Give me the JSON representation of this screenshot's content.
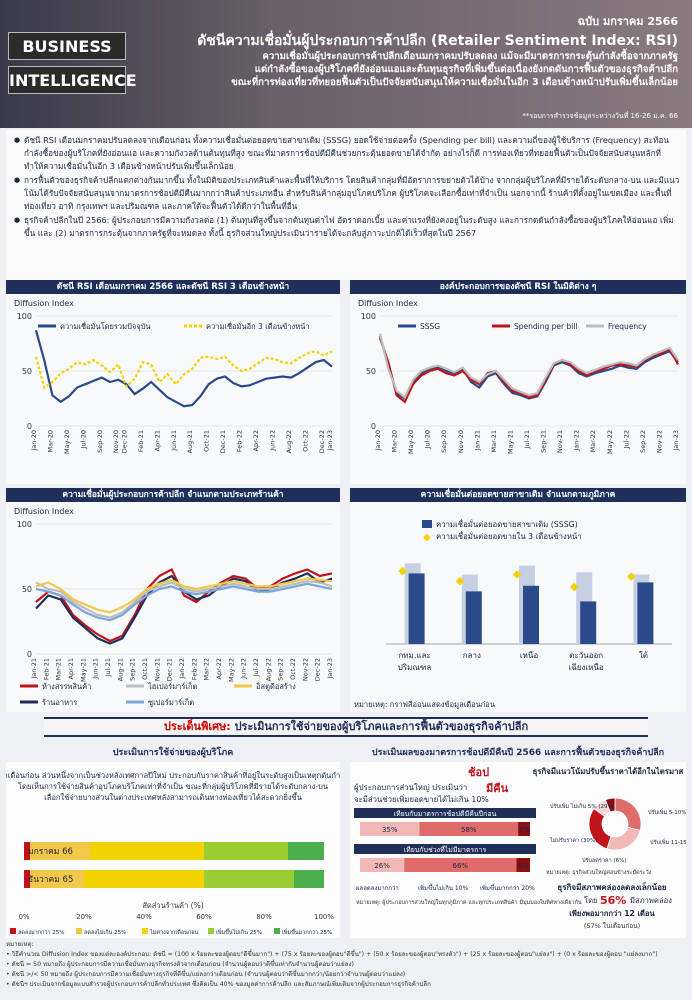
{
  "header": {
    "brand_line1": "BUSINESS",
    "brand_line2": "INTELLIGENCE",
    "issue": "ฉบับ มกราคม 2566",
    "title": "ดัชนีความเชื่อมั่นผู้ประกอบการค้าปลีก (Retailer Sentiment Index: RSI)",
    "sub1": "ความเชื่อมั่นผู้ประกอบการค้าปลีกเดือนมกราคมปรับลดลง แม้จะมีมาตรการกระตุ้นกำลังซื้อจากภาครัฐ",
    "sub2": "แต่กำลังซื้อของผู้บริโภคที่ยังอ่อนแอและต้นทุนธุรกิจที่เพิ่มขึ้นต่อเนื่องยังกดดันการฟื้นตัวของธุรกิจค้าปลีก",
    "sub3": "ขณะที่การท่องเที่ยวที่ทยอยฟื้นตัวเป็นปัจจัยสนับสนุนให้ความเชื่อมั่นในอีก 3 เดือนข้างหน้าปรับเพิ่มขึ้นเล็กน้อย",
    "note": "**รอบการสำรวจข้อมูลระหว่างวันที่ 16-26 ม.ค. 66"
  },
  "bullets": [
    "ดัชนี RSI เดือนมกราคมปรับลดลงจากเดือนก่อน ทั้งความเชื่อมั่นต่อยอดขายสาขาเดิม (SSSG) ยอดใช้จ่ายต่อครั้ง (Spending per bill) และความถี่ของผู้ใช้บริการ (Frequency) สะท้อนกำลังซื้อของผู้บริโภคที่ยังอ่อนแอ และความกังวลด้านต้นทุนที่สูง ขณะที่มาตรการช้อปดีมีคืนช่วยกระตุ้นยอดขายได้จำกัด อย่างไรก็ดี การท่องเที่ยวที่ทยอยฟื้นตัวเป็นปัจจัยสนับสนุนหลักที่ทำให้ความเชื่อมั่นในอีก 3 เดือนข้างหน้าปรับเพิ่มขึ้นเล็กน้อย",
    "การฟื้นตัวของธุรกิจค้าปลีกแตกต่างกันมากขึ้น ทั้งในมิติของประเภทสินค้าและพื้นที่ให้บริการ โดยสินค้ากลุ่มที่มีอัตราการขยายตัวได้บ้าง จากกลุ่มผู้บริโภคที่มีรายได้ระดับกลาง-บน และมีแนวโน้มได้รับปัจจัยสนับสนุนจากมาตรการช้อปดีมีคืนมากกว่าสินค้าประเภทอื่น สำหรับสินค้ากลุ่มอุปโภคบริโภค ผู้บริโภคจะเลือกซื้อเท่าที่จำเป็น นอกจากนี้ ร้านค้าที่ตั้งอยู่ในเขตเมือง และพื้นที่ท่องเที่ยว อาทิ กรุงเทพฯ และปริมณฑล และภาคใต้จะฟื้นตัวได้ดีกว่าในพื้นที่อื่น",
    "ธุรกิจค้าปลีกในปี 2566: ผู้ประกอบการมีความกังวลต่อ (1) ต้นทุนที่สูงขึ้นจากต้นทุนค่าไฟ อัตราดอกเบี้ย และค่าแรงที่ยังคงอยู่ในระดับสูง และการกดดันกำลังซื้อของผู้บริโภคให้อ่อนแอ เพิ่มขึ้น และ (2) มาตรการกระตุ้นจากภาครัฐที่จะหมดลง ทั้งนี้ ธุรกิจส่วนใหญ่ประเมินว่ารายได้จะกลับสู่ภาวะปกติได้เร็วที่สุดในปี 2567"
  ],
  "charts": {
    "c1_title": "ดัชนี RSI เดือนมกราคม 2566 และดัชนี RSI 3 เดือนข้างหน้า",
    "c2_title": "องค์ประกอบการของดัชนี RSI ในมิติต่าง ๆ",
    "c3_title": "ความเชื่อมั่นผู้ประกอบการค้าปลีก จำแนกตามประเภทร้านค้า",
    "c4_title": "ความเชื่อมั่นต่อยอดขายสาขาเดิม จำแนกตามภูมิภาค",
    "ylabel": "Diffusion Index",
    "c4_note": "หมายเหตุ: กราฟสีอ่อนแสดงข้อมูลเดือนก่อน"
  },
  "chart_data": [
    {
      "type": "line",
      "title": "ดัชนี RSI เดือนมกราคม 2566 และดัชนี RSI 3 เดือนข้างหน้า",
      "ylabel": "Diffusion Index",
      "ylim": [
        0,
        100
      ],
      "yticks": [
        0,
        50,
        100
      ],
      "x": [
        "Jan-20",
        "Feb-20",
        "Mar-20",
        "Apr-20",
        "May-20",
        "Jun-20",
        "Jul-20",
        "Aug-20",
        "Sep-20",
        "Oct-20",
        "Nov-20",
        "Dec-20",
        "Jan-21",
        "Feb-21",
        "Mar-21",
        "Apr-21",
        "May-21",
        "Jun-21",
        "Jul-21",
        "Aug-21",
        "Sep-21",
        "Oct-21",
        "Nov-21",
        "Dec-21",
        "Jan-22",
        "Feb-22",
        "Mar-22",
        "Apr-22",
        "May-22",
        "Jun-22",
        "Jul-22",
        "Aug-22",
        "Sep-22",
        "Oct-22",
        "Nov-22",
        "Dec-22",
        "Jan-23"
      ],
      "xticks": [
        "Jan-20",
        "Mar-20",
        "May-20",
        "Jul-20",
        "Sep-20",
        "Nov-20",
        "Dec-20",
        "Feb-21",
        "Apr-21",
        "Jun-21",
        "Aug-21",
        "Oct-21",
        "Dec-21",
        "Feb-22",
        "Apr-22",
        "Jun-22",
        "Aug-22",
        "Oct-22",
        "Dec-22",
        "Jan-23"
      ],
      "series": [
        {
          "name": "ความเชื่อมั่นโดยรวมปัจจุบัน",
          "color": "#2b4a8a",
          "values": [
            87,
            60,
            28,
            22,
            27,
            35,
            38,
            41,
            44,
            40,
            42,
            38,
            29,
            34,
            40,
            33,
            26,
            22,
            18,
            19,
            27,
            38,
            43,
            45,
            39,
            36,
            37,
            40,
            43,
            44,
            45,
            44,
            48,
            53,
            58,
            60,
            54
          ]
        },
        {
          "name": "ความเชื่อมั่นอีก 3 เดือนข้างหน้า",
          "color": "#f2d200",
          "values": [
            63,
            35,
            40,
            48,
            52,
            58,
            56,
            60,
            55,
            49,
            56,
            36,
            43,
            58,
            56,
            40,
            47,
            38,
            47,
            52,
            62,
            63,
            61,
            63,
            55,
            50,
            52,
            57,
            62,
            61,
            58,
            57,
            62,
            66,
            68,
            64,
            68
          ]
        }
      ]
    },
    {
      "type": "line",
      "title": "องค์ประกอบการของดัชนี RSI ในมิติต่าง ๆ",
      "ylabel": "Diffusion Index",
      "ylim": [
        0,
        100
      ],
      "yticks": [
        0,
        50,
        100
      ],
      "x": [
        "Jan-20",
        "Feb-20",
        "Mar-20",
        "Apr-20",
        "May-20",
        "Jun-20",
        "Jul-20",
        "Aug-20",
        "Sep-20",
        "Oct-20",
        "Nov-20",
        "Dec-20",
        "Jan-21",
        "Feb-21",
        "Mar-21",
        "Apr-21",
        "May-21",
        "Jun-21",
        "Jul-21",
        "Aug-21",
        "Sep-21",
        "Oct-21",
        "Nov-21",
        "Dec-21",
        "Jan-22",
        "Feb-22",
        "Mar-22",
        "Apr-22",
        "May-22",
        "Jun-22",
        "Jul-22",
        "Aug-22",
        "Sep-22",
        "Oct-22",
        "Nov-22",
        "Dec-22",
        "Jan-23"
      ],
      "xticks": [
        "Jan-20",
        "Mar-20",
        "May-20",
        "Jul-20",
        "Sep-20",
        "Nov-20",
        "Jan-21",
        "Mar-21",
        "May-21",
        "Jul-21",
        "Sep-21",
        "Nov-21",
        "Jan-22",
        "Mar-22",
        "May-22",
        "Jul-22",
        "Sep-22",
        "Nov-22",
        "Jan-23"
      ],
      "series": [
        {
          "name": "SSSG",
          "color": "#2b4a8a",
          "values": [
            82,
            55,
            30,
            25,
            40,
            48,
            52,
            53,
            50,
            48,
            52,
            40,
            35,
            45,
            48,
            38,
            30,
            28,
            25,
            27,
            40,
            55,
            58,
            55,
            48,
            45,
            48,
            50,
            52,
            55,
            53,
            52,
            58,
            62,
            65,
            68,
            58
          ]
        },
        {
          "name": "Spending per bill",
          "color": "#c0141a",
          "values": [
            80,
            58,
            28,
            22,
            38,
            46,
            50,
            52,
            48,
            46,
            50,
            42,
            38,
            48,
            50,
            40,
            32,
            30,
            26,
            28,
            42,
            56,
            60,
            56,
            50,
            46,
            50,
            52,
            55,
            56,
            55,
            54,
            60,
            64,
            66,
            70,
            56
          ]
        },
        {
          "name": "Frequency",
          "color": "#bdbdbd",
          "values": [
            84,
            52,
            32,
            26,
            42,
            50,
            53,
            55,
            52,
            49,
            53,
            44,
            40,
            47,
            50,
            42,
            34,
            31,
            28,
            30,
            44,
            57,
            60,
            58,
            52,
            48,
            51,
            54,
            56,
            58,
            57,
            55,
            61,
            65,
            68,
            71,
            60
          ]
        }
      ]
    },
    {
      "type": "line",
      "title": "ความเชื่อมั่นผู้ประกอบการค้าปลีก จำแนกตามประเภทร้านค้า",
      "ylabel": "Diffusion Index",
      "ylim": [
        0,
        100
      ],
      "yticks": [
        0,
        50,
        100
      ],
      "x": [
        "Jan-21",
        "Feb-21",
        "Mar-21",
        "Apr-21",
        "May-21",
        "Jun-21",
        "Jul-21",
        "Aug-21",
        "Sep-21",
        "Oct-21",
        "Nov-21",
        "Dec-21",
        "Jan-22",
        "Feb-22",
        "Mar-22",
        "Apr-22",
        "May-22",
        "Jun-22",
        "Jul-22",
        "Aug-22",
        "Sep-22",
        "Oct-22",
        "Nov-22",
        "Dec-22",
        "Jan-23"
      ],
      "xticks": [
        "Jan-21",
        "Feb-21",
        "Mar-21",
        "Apr-21",
        "May-21",
        "Jun-21",
        "Jul-21",
        "Aug-21",
        "Sep-21",
        "Oct-21",
        "Nov-21",
        "Dec-21",
        "Jan-22",
        "Feb-22",
        "Mar-22",
        "Apr-22",
        "May-22",
        "Jun-22",
        "Jul-22",
        "Aug-22",
        "Sep-22",
        "Oct-22",
        "Nov-22",
        "Dec-22",
        "Jan-23"
      ],
      "series": [
        {
          "name": "ห้างสรรพสินค้า",
          "color": "#c0141a",
          "values": [
            40,
            48,
            45,
            30,
            22,
            15,
            10,
            14,
            30,
            50,
            60,
            65,
            45,
            40,
            48,
            55,
            60,
            58,
            50,
            52,
            58,
            62,
            65,
            60,
            62
          ]
        },
        {
          "name": "ร้านอาหาร",
          "color": "#1f2f5a",
          "values": [
            35,
            45,
            42,
            28,
            20,
            12,
            8,
            12,
            28,
            45,
            55,
            60,
            48,
            42,
            45,
            52,
            58,
            56,
            48,
            50,
            55,
            58,
            62,
            55,
            58
          ]
        },
        {
          "name": "ไฮเปอร์มาร์เก็ต",
          "color": "#bdbdbd",
          "values": [
            55,
            50,
            48,
            40,
            35,
            30,
            28,
            32,
            40,
            48,
            52,
            55,
            50,
            48,
            50,
            52,
            54,
            52,
            50,
            50,
            52,
            54,
            56,
            55,
            52
          ]
        },
        {
          "name": "ซูเปอร์มาร์เก็ต",
          "color": "#7aa6d8",
          "values": [
            50,
            48,
            45,
            38,
            32,
            28,
            26,
            30,
            38,
            45,
            50,
            52,
            48,
            46,
            48,
            50,
            52,
            50,
            48,
            48,
            50,
            52,
            54,
            52,
            50
          ]
        },
        {
          "name": "อิสตูดีอสร้าง",
          "color": "#f2c84b",
          "values": [
            52,
            55,
            50,
            42,
            38,
            34,
            32,
            36,
            42,
            50,
            54,
            57,
            52,
            50,
            52,
            54,
            56,
            54,
            52,
            52,
            54,
            56,
            58,
            57,
            56
          ]
        }
      ]
    },
    {
      "type": "bar",
      "title": "ความเชื่อมั่นต่อยอดขายสาขาเดิม จำแนกตามภูมิภาค",
      "categories": [
        "กทม.และปริมณฑล",
        "กลาง",
        "เหนือ",
        "ตะวันออกเฉียงเหนือ",
        "ใต้"
      ],
      "series": [
        {
          "name": "ความเชื่อมั่นต่อยอดขายสาขาเดิม (SSSG)",
          "color": "#2b4a8a",
          "values": [
            63,
            47,
            52,
            38,
            55
          ]
        },
        {
          "name": "เดือนก่อน",
          "color": "#c7cfe3",
          "values": [
            72,
            62,
            70,
            64,
            62
          ]
        },
        {
          "name": "ความเชื่อมั่นต่อยอดขายใน 3 เดือนข้างหน้า",
          "color": "#f2d200",
          "values": [
            66,
            57,
            63,
            52,
            61
          ]
        }
      ],
      "ylim": [
        0,
        100
      ]
    }
  ],
  "special": {
    "label": "ประเด็นพิเศษ:",
    "text": "ประเมินการใช้จ่ายของผู้บริโภคและการฟื้นตัวของธุรกิจค้าปลีก"
  },
  "left_panel": {
    "title": "ประเมินการใช้จ่ายของผู้บริโภค",
    "para": "โดยรวมผู้บริโภคใช้จ่ายลดลงจากเดือนก่อน ส่วนหนึ่งจากเป็นช่วงหลังเทศกาลปีใหม่ ประกอบกับราคาสินค้าที่อยู่ในระดับสูงเป็นเหตุกดันกำลังซื้อกลุ่มผู้บริโภคที่มีรายได้น้อย โดยเห็นการใช้จ่ายสินค้าอุปโภคบริโภคเท่าที่จำเป็น ขณะที่กลุ่มผู้บริโภคที่มีรายได้ระดับกลาง-บน เลือกใช้จ่ายบางส่วนในต่างประเทศหลังสามารถเดินทางท่องเที่ยวได้สะดวกยิ่งขึ้น",
    "rows": [
      {
        "label": "มกราคม 66",
        "segments": [
          2,
          20,
          38,
          28,
          12
        ]
      },
      {
        "label": "ธันวาคม 65",
        "segments": [
          2,
          18,
          40,
          30,
          10
        ]
      }
    ],
    "seg_colors": [
      "#c0141a",
      "#f2c84b",
      "#f2d200",
      "#9acd32",
      "#4cae4c"
    ],
    "xlabel": "สัดส่วนร้านค้า (%)",
    "xticks": [
      "0%",
      "20%",
      "40%",
      "60%",
      "80%",
      "100%"
    ],
    "legend": [
      "ลดลงมากกว่า 25%",
      "ลดลงไม่เกิน 25%",
      "ไม่ต่างจากเดือนก่อน",
      "เพิ่มขึ้นไม่เกิน 25%",
      "เพิ่มขึ้นมากกว่า 25%"
    ]
  },
  "right_panel": {
    "title": "ประเมินผลของมาตรการช้อปดีมีคืนปี 2566 และการฟื้นตัวของธุรกิจค้าปลีก",
    "shop_a": "ช้อป",
    "shop_b": "มีคืน",
    "shop_text": "ผู้ประกอบการส่วนใหญ่ ประเมินว่า",
    "shop_text2": "จะมีส่วนช่วยเพิ่มยอดขายได้ไม่เกิน 10%",
    "box1_title": "เทียบกับมาตรการช้อปดีมีคืนปีก่อน",
    "box1_vals": [
      "35%",
      "58%",
      "7%"
    ],
    "box1_shares": [
      35,
      58,
      7
    ],
    "box2_title": "เทียบกับช่วงที่ไม่มีมาตรการ",
    "box2_vals": [
      "26%",
      "66%",
      "8%"
    ],
    "box2_shares": [
      26,
      66,
      8
    ],
    "box_legend": [
      "ผลลดลงมากกว่า",
      "เพิ่มขึ้นไม่เกิน 10%",
      "เพิ่มขึ้นมากกว่า 20%"
    ],
    "box_note": "หมายเหตุ: ผู้ประกอบการส่วนใหญ่ในทุกภูมิภาค และทุกประเภทสินค้า มีมุมมองในทิศทางเดียวกัน",
    "recover_title": "ธุรกิจมีแนวโน้มปรับขึ้นราคาได้อีกในไตรมาส 1",
    "pie_labels": [
      "ปรับเพิ่ม ไม่เกิน 5% (29%)",
      "ปรับเพิ่ม 5-10% (26%)",
      "ไม่ปรับราคา (30%)",
      "ปรับเพิ่ม 11-15% (9%)",
      "ปรับลดราคา (6%)"
    ],
    "pie_values": [
      29,
      26,
      30,
      9,
      6
    ],
    "pie_colors": [
      "#e06b6b",
      "#f2b8b8",
      "#c0141a",
      "#f7d7d7",
      "#8a0f12"
    ],
    "pie_note": "หมายเหตุ: ธุรกิจส่วนใหญ่ค่อนข้างระมัดระวัง",
    "stock_text1": "ธุรกิจมีสภาพคล่องลดลงเล็กน้อย",
    "stock_text2": "โดย",
    "stock_pct": "56%",
    "stock_text3": "มีสภาพคล่อง",
    "stock_text4": "เพียงพอมากกว่า 12 เดือน",
    "stock_note": "(57% ในเดือนก่อน)"
  },
  "footnotes": [
    "หมายเหตุ:",
    "• วิธีคำนวณ Diffusion Index ของแต่ละองค์ประกอบ: ดัชนี = (100 x ร้อยละของผู้ตอบ\"ดีขึ้นมาก\") + (75 x ร้อยละของผู้ตอบ\"ดีขึ้น\") + (50 x ร้อยละของผู้ตอบ\"ทรงตัว\") + (25 x ร้อยละของผู้ตอบ\"แย่ลง\") + (0 x ร้อยละของผู้ตอบ \"แย่ลงมาก\")",
    "• ดัชนี = 50 หมายถึง ผู้ประกอบการมีความเชื่อมั่นทางธุรกิจทรงตัวจากเดือนก่อน (จำนวนผู้ตอบว่าดีขึ้นเท่ากับจำนวนผู้ตอบว่าแย่ลง)",
    "• ดัชนี >/< 50 หมายถึง ผู้ประกอบการมีความเชื่อมั่นทางธุรกิจที่ดีขึ้น/แย่ลงกว่าเดือนก่อน (จำนวนผู้ตอบว่าดีขึ้นมากกว่า/น้อยกว่าจำนวนผู้ตอบว่าแย่ลง)",
    "• ดัชนีฯ ประเมินจากข้อมูลแบบสำรวจผู้ประกอบการค้าปลีกทั่วประเทศ ซึ่งคิดเป็น 40% ของมูลค่าการค้าปลีก และสัมภาษณ์เพิ่มเติมจากผู้ประกอบการธุรกิจค้าปลีก"
  ]
}
